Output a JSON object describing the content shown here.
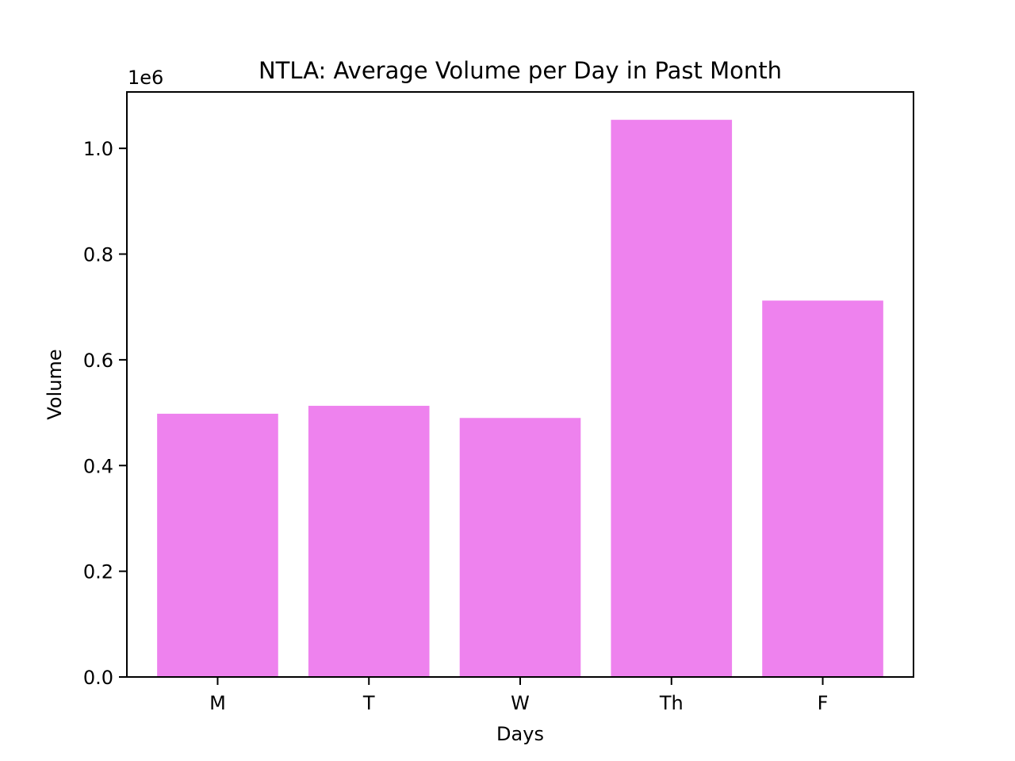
{
  "chart_data": {
    "type": "bar",
    "title": "NTLA: Average Volume per Day in Past Month",
    "xlabel": "Days",
    "ylabel": "Volume",
    "y_offset_label": "1e6",
    "categories": [
      "M",
      "T",
      "W",
      "Th",
      "F"
    ],
    "values": [
      498000,
      513000,
      490000,
      1054000,
      712000
    ],
    "ylim": [
      0,
      1106700
    ],
    "yticks": [
      0,
      200000,
      400000,
      600000,
      800000,
      1000000
    ],
    "ytick_labels": [
      "0.0",
      "0.2",
      "0.4",
      "0.6",
      "0.8",
      "1.0"
    ],
    "bar_color": "#ee82ee",
    "grid": false,
    "legend": "none"
  }
}
